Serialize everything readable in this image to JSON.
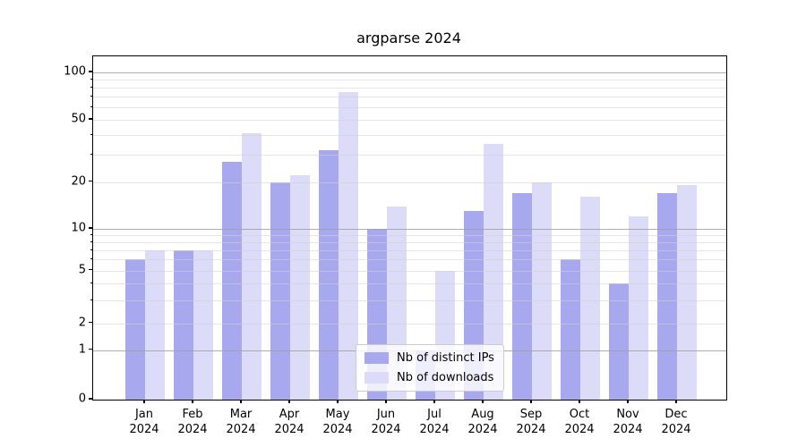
{
  "chart_data": {
    "type": "bar",
    "title": "argparse 2024",
    "categories": [
      "Jan",
      "Feb",
      "Mar",
      "Apr",
      "May",
      "Jun",
      "Jul",
      "Aug",
      "Sep",
      "Oct",
      "Nov",
      "Dec"
    ],
    "category_year": "2024",
    "xlabel": "",
    "ylabel": "",
    "yscale": "symlog",
    "ylim": [
      0,
      126
    ],
    "y_ticks": [
      0,
      1,
      2,
      5,
      10,
      20,
      50,
      100
    ],
    "grid": true,
    "legend_position": "lower center",
    "series": [
      {
        "name": "Nb of distinct IPs",
        "color": "#a8a8ee",
        "values": [
          6,
          7,
          27,
          20,
          32,
          10,
          1,
          13,
          17,
          6,
          4,
          17
        ]
      },
      {
        "name": "Nb of downloads",
        "color": "#dcdcf8",
        "values": [
          7,
          7,
          41,
          22,
          75,
          14,
          5,
          35,
          20,
          16,
          12,
          19
        ]
      }
    ]
  },
  "colors": {
    "major_grid": "#a8a8a8",
    "minor_grid": "#e4e4e4",
    "axis": "#000000",
    "legend_border": "#cccccc"
  }
}
